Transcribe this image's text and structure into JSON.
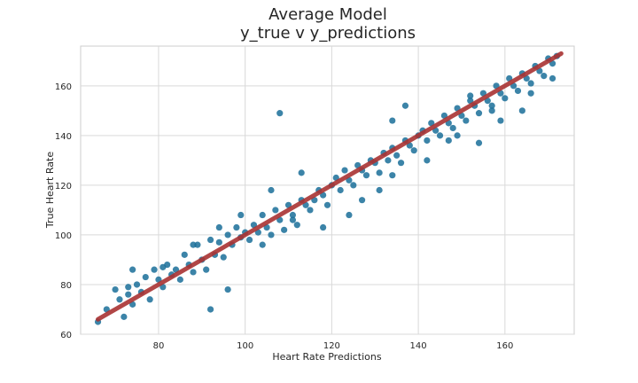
{
  "chart_data": {
    "type": "scatter",
    "title_line1": "Average Model",
    "title_line2": "y_true v y_predictions",
    "xlabel": "Heart Rate Predictions",
    "ylabel": "True Heart Rate",
    "xlim": [
      62,
      176
    ],
    "ylim": [
      60,
      176
    ],
    "xticks": [
      80,
      100,
      120,
      140,
      160
    ],
    "yticks": [
      60,
      80,
      100,
      120,
      140,
      160
    ],
    "grid": true,
    "colors": {
      "points": "#1a6f99",
      "fit_line": "#a83232",
      "grid": "#d9d9d9",
      "axes_edge": "#cccccc"
    },
    "series": [
      {
        "kind": "points",
        "x": [
          66,
          68,
          70,
          71,
          72,
          73,
          74,
          74,
          75,
          76,
          77,
          78,
          79,
          80,
          81,
          82,
          83,
          84,
          85,
          86,
          87,
          88,
          89,
          90,
          91,
          92,
          93,
          94,
          95,
          96,
          97,
          98,
          99,
          100,
          101,
          102,
          103,
          104,
          105,
          106,
          107,
          108,
          109,
          110,
          111,
          112,
          113,
          114,
          115,
          116,
          117,
          118,
          119,
          120,
          121,
          122,
          123,
          124,
          125,
          126,
          127,
          128,
          129,
          130,
          131,
          132,
          133,
          134,
          135,
          136,
          137,
          138,
          139,
          140,
          141,
          142,
          143,
          144,
          145,
          146,
          147,
          148,
          149,
          150,
          151,
          152,
          153,
          154,
          155,
          156,
          157,
          158,
          159,
          160,
          161,
          162,
          163,
          164,
          165,
          166,
          167,
          168,
          169,
          170,
          171,
          172,
          108,
          118,
          124,
          131,
          147,
          164,
          171,
          92,
          96,
          104,
          111,
          127,
          134,
          142,
          154,
          159,
          166,
          73,
          81,
          88,
          99,
          106,
          113,
          137,
          152,
          157,
          134,
          149,
          94
        ],
        "y": [
          65,
          70,
          78,
          74,
          67,
          76,
          72,
          86,
          80,
          77,
          83,
          74,
          86,
          82,
          79,
          88,
          84,
          86,
          82,
          92,
          88,
          85,
          96,
          90,
          86,
          98,
          92,
          97,
          91,
          100,
          96,
          103,
          99,
          101,
          98,
          104,
          101,
          108,
          103,
          100,
          110,
          106,
          102,
          112,
          108,
          104,
          114,
          112,
          110,
          114,
          118,
          116,
          112,
          120,
          123,
          118,
          126,
          122,
          120,
          128,
          126,
          124,
          130,
          129,
          125,
          133,
          130,
          135,
          132,
          129,
          138,
          136,
          134,
          140,
          142,
          138,
          145,
          142,
          140,
          148,
          145,
          143,
          151,
          148,
          146,
          154,
          152,
          149,
          157,
          154,
          152,
          160,
          157,
          155,
          163,
          160,
          158,
          165,
          163,
          161,
          168,
          166,
          164,
          171,
          169,
          172,
          149,
          103,
          108,
          118,
          138,
          150,
          163,
          70,
          78,
          96,
          106,
          114,
          124,
          130,
          137,
          146,
          157,
          79,
          87,
          96,
          108,
          118,
          125,
          152,
          156,
          150,
          146,
          140,
          103
        ]
      },
      {
        "kind": "fit_line",
        "x": [
          66,
          173
        ],
        "y": [
          66,
          173
        ]
      }
    ]
  }
}
